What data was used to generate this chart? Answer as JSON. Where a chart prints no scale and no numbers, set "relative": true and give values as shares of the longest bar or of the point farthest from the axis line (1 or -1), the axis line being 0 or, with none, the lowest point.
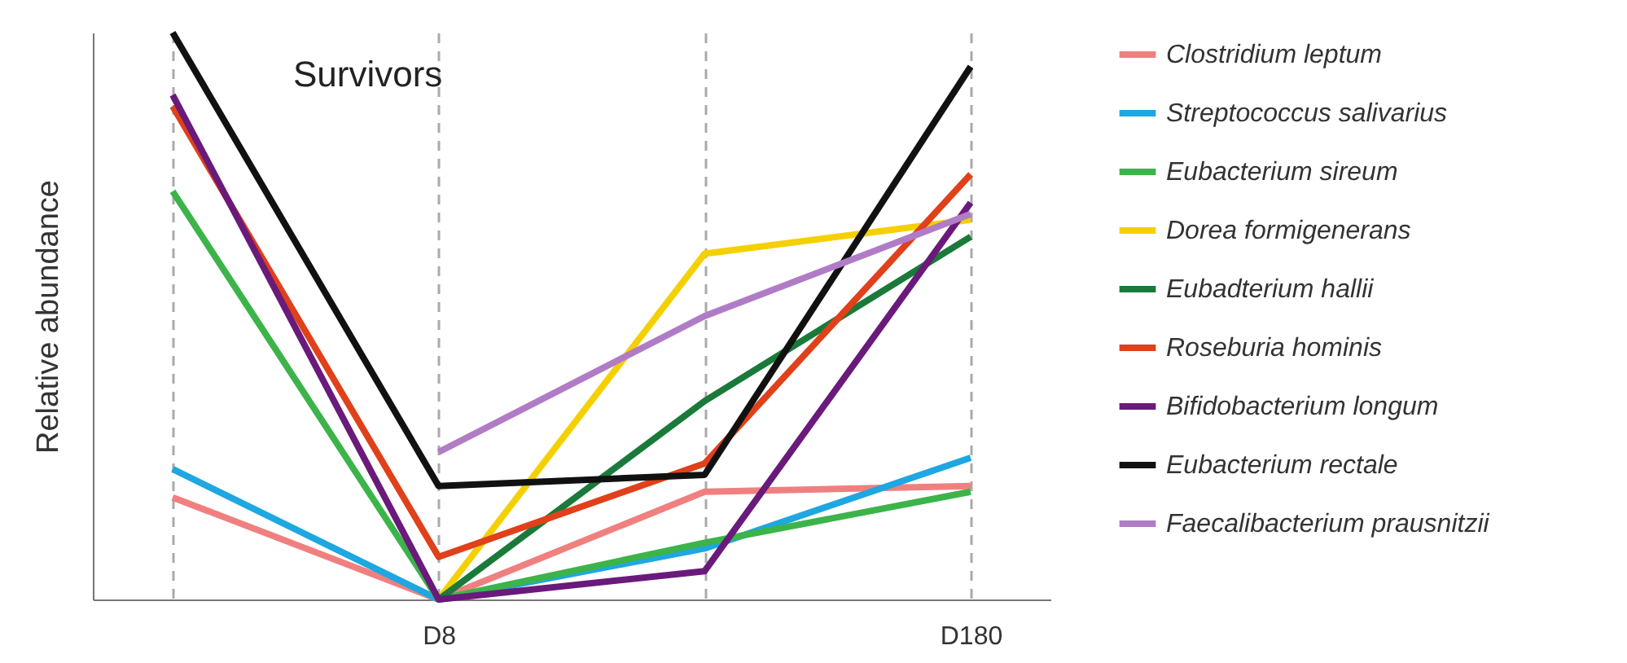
{
  "chart_data": {
    "type": "line",
    "title": "Survivors",
    "ylabel": "Relative abundance",
    "relative": true,
    "categories": [
      null,
      "D8",
      null,
      "D180"
    ],
    "series": [
      {
        "name": "Clostridium leptum",
        "color": "#f08080",
        "values": [
          0.18,
          0,
          0.19,
          0.2
        ]
      },
      {
        "name": "Streptococcus salivarius",
        "color": "#1ea7e1",
        "values": [
          0.23,
          0,
          0.09,
          0.25
        ]
      },
      {
        "name": "Eubacterium sireum",
        "color": "#3cb44a",
        "values": [
          0.72,
          0,
          0.1,
          0.19
        ]
      },
      {
        "name": "Dorea formigenerans",
        "color": "#f5d000",
        "values": [
          null,
          0,
          0.61,
          0.67
        ]
      },
      {
        "name": "Eubadterium hallii",
        "color": "#1a7a3a",
        "values": [
          null,
          0,
          0.35,
          0.64
        ]
      },
      {
        "name": "Roseburia hominis",
        "color": "#e0401a",
        "values": [
          0.87,
          0.075,
          0.24,
          0.75
        ]
      },
      {
        "name": "Bifidobacterium longum",
        "color": "#6a1a7a",
        "values": [
          0.89,
          0,
          0.05,
          0.7
        ]
      },
      {
        "name": "Eubacterium rectale",
        "color": "#111111",
        "values": [
          1,
          0.2,
          0.22,
          0.94
        ]
      },
      {
        "name": "Faecalibacterium prausnitzii",
        "color": "#b07cc6",
        "values": [
          null,
          0.26,
          0.5,
          0.68
        ]
      }
    ],
    "grid": "x",
    "legend": "right"
  }
}
